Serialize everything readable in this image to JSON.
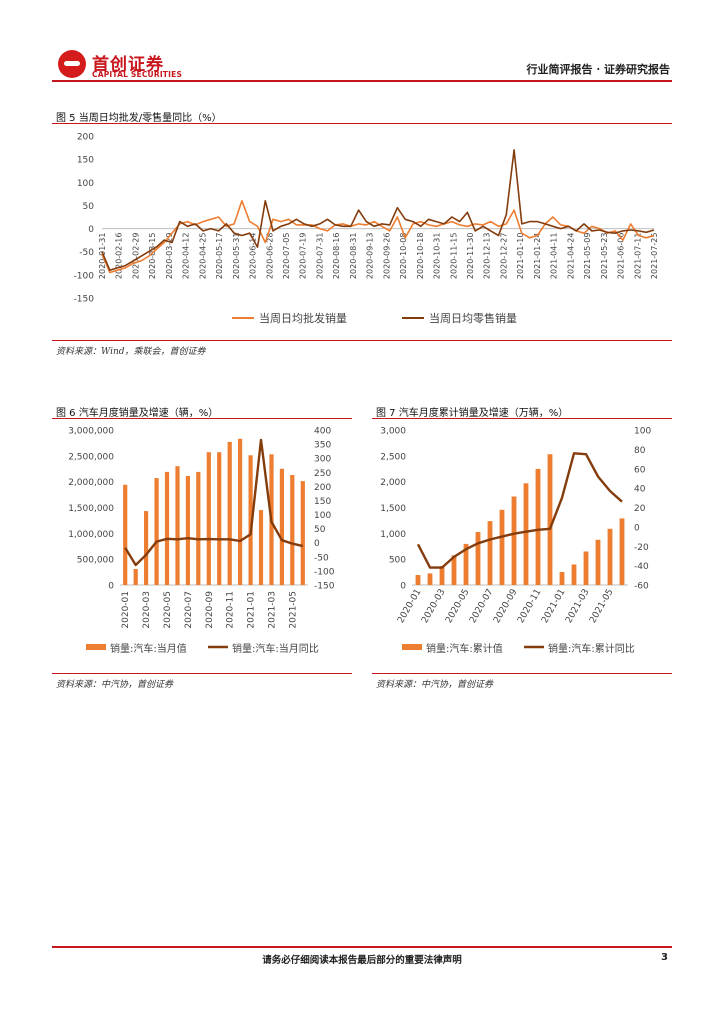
{
  "header": {
    "logo_cn": "首创证券",
    "logo_en": "CAPITAL SECURITIES",
    "report_type": "行业简评报告 · 证券研究报告"
  },
  "colors": {
    "brand_red": "#c8161d",
    "orange": "#ed7d31",
    "brown": "#843c0c"
  },
  "figures": {
    "fig5": {
      "title": "图 5  当周日均批发/零售量同比（%）",
      "source": "资料来源：Wind，乘联会，首创证券"
    },
    "fig6": {
      "title": "图 6  汽车月度销量及增速（辆，%）",
      "source": "资料来源：中汽协，首创证券"
    },
    "fig7": {
      "title": "图 7  汽车月度累计销量及增速（万辆，%）",
      "source": "资料来源：中汽协，首创证券"
    }
  },
  "chart_data": [
    {
      "id": "fig5",
      "type": "line",
      "y_ticks": [
        200,
        150,
        100,
        50,
        0,
        -50,
        -100,
        -150
      ],
      "ylim": [
        -150,
        200
      ],
      "x_tick_labels": [
        "2020-01-31",
        "2020-02-16",
        "2020-02-29",
        "2020-03-15",
        "2020-03-29",
        "2020-04-12",
        "2020-04-25",
        "2020-05-17",
        "2020-05-31",
        "2020-06-14",
        "2020-06-28",
        "2020-07-05",
        "2020-07-19",
        "2020-07-31",
        "2020-08-16",
        "2020-08-31",
        "2020-09-13",
        "2020-09-26",
        "2020-10-08",
        "2020-10-18",
        "2020-10-31",
        "2020-11-15",
        "2020-11-30",
        "2020-12-13",
        "2020-12-27",
        "2021-01-10",
        "2021-01-24",
        "2021-04-11",
        "2021-04-24",
        "2021-05-09",
        "2021-05-23",
        "2021-06-06",
        "2021-07-11",
        "2021-07-25"
      ],
      "legend_position": "bottom",
      "series": [
        {
          "name": "当周日均批发销量",
          "color": "#ed7d31",
          "values": [
            -55,
            -95,
            -90,
            -85,
            -75,
            -70,
            -60,
            -45,
            -30,
            -10,
            10,
            15,
            8,
            15,
            20,
            25,
            5,
            10,
            60,
            15,
            5,
            -30,
            20,
            15,
            20,
            8,
            8,
            8,
            0,
            -5,
            8,
            10,
            5,
            10,
            8,
            15,
            5,
            -5,
            25,
            -20,
            10,
            15,
            8,
            5,
            10,
            15,
            8,
            5,
            10,
            8,
            15,
            5,
            10,
            40,
            -10,
            -20,
            -15,
            10,
            25,
            8,
            5,
            -5,
            -10,
            5,
            0,
            -10,
            -5,
            -25,
            10,
            -15,
            -20,
            -15
          ]
        },
        {
          "name": "当周日均零售销量",
          "color": "#843c0c",
          "values": [
            -50,
            -90,
            -85,
            -80,
            -70,
            -60,
            -50,
            -40,
            -25,
            -30,
            15,
            5,
            10,
            -5,
            0,
            -5,
            10,
            -10,
            -15,
            -10,
            -40,
            60,
            -5,
            5,
            10,
            20,
            10,
            5,
            10,
            20,
            8,
            5,
            5,
            40,
            15,
            5,
            10,
            8,
            45,
            20,
            15,
            5,
            20,
            15,
            10,
            25,
            15,
            35,
            -5,
            5,
            -5,
            -15,
            30,
            170,
            10,
            15,
            15,
            10,
            5,
            0,
            5,
            -5,
            10,
            -5,
            -3,
            -8,
            -10,
            -5,
            -3,
            -5,
            -8,
            -3
          ]
        }
      ]
    },
    {
      "id": "fig6",
      "type": "bar",
      "categories": [
        "2020-01",
        "2020-02",
        "2020-03",
        "2020-04",
        "2020-05",
        "2020-06",
        "2020-07",
        "2020-08",
        "2020-09",
        "2020-10",
        "2020-11",
        "2020-12",
        "2021-01",
        "2021-02",
        "2021-03",
        "2021-04",
        "2021-05",
        "2021-06"
      ],
      "x_tick_labels": [
        "2020-01",
        "2020-03",
        "2020-05",
        "2020-07",
        "2020-09",
        "2020-11",
        "2021-01",
        "2021-03",
        "2021-05"
      ],
      "y_left_ticks": [
        "3,000,000",
        "2,500,000",
        "2,000,000",
        "1,500,000",
        "1,000,000",
        "500,000",
        "0"
      ],
      "y_right_ticks": [
        "400",
        "350",
        "300",
        "250",
        "200",
        "150",
        "100",
        "50",
        "0",
        "-50",
        "-100",
        "-150"
      ],
      "ylim_left": [
        0,
        3000000
      ],
      "ylim_right": [
        -150,
        400
      ],
      "legend_position": "bottom",
      "series": [
        {
          "name": "销量:汽车:当月值",
          "axis": "left",
          "color": "#ed7d31",
          "values": [
            1940000,
            310000,
            1430000,
            2070000,
            2190000,
            2300000,
            2110000,
            2190000,
            2570000,
            2570000,
            2770000,
            2830000,
            2510000,
            1450000,
            2530000,
            2250000,
            2130000,
            2010000
          ]
        },
        {
          "name": "销量:汽车:当月同比",
          "axis": "right",
          "color": "#843c0c",
          "values": [
            -18,
            -79,
            -43,
            4,
            14,
            12,
            16,
            12,
            13,
            12,
            12,
            6,
            30,
            365,
            75,
            9,
            -3,
            -12
          ]
        }
      ]
    },
    {
      "id": "fig7",
      "type": "bar",
      "categories": [
        "2020-01",
        "2020-02",
        "2020-03",
        "2020-04",
        "2020-05",
        "2020-06",
        "2020-07",
        "2020-08",
        "2020-09",
        "2020-10",
        "2020-11",
        "2020-12",
        "2021-01",
        "2021-02",
        "2021-03",
        "2021-04",
        "2021-05",
        "2021-06"
      ],
      "x_tick_labels": [
        "2020-01",
        "2020-03",
        "2020-05",
        "2020-07",
        "2020-09",
        "2020-11",
        "2021-01",
        "2021-03",
        "2021-05"
      ],
      "y_left_ticks": [
        "3,000",
        "2,500",
        "2,000",
        "1,500",
        "1,000",
        "500",
        "0"
      ],
      "y_right_ticks": [
        "100",
        "80",
        "60",
        "40",
        "20",
        "0",
        "-20",
        "-40",
        "-60"
      ],
      "ylim_left": [
        0,
        3000
      ],
      "ylim_right": [
        -60,
        100
      ],
      "legend_position": "bottom",
      "series": [
        {
          "name": "销量:汽车:累计值",
          "axis": "left",
          "color": "#ed7d31",
          "values": [
            194,
            225,
            368,
            575,
            795,
            1025,
            1236,
            1455,
            1712,
            1969,
            2247,
            2531,
            251,
            396,
            649,
            874,
            1087,
            1289
          ]
        },
        {
          "name": "销量:汽车:累计同比",
          "axis": "right",
          "color": "#843c0c",
          "values": [
            -18,
            -42,
            -42,
            -31,
            -23,
            -17,
            -13,
            -10,
            -7,
            -5,
            -3,
            -2,
            30,
            76,
            75,
            52,
            37,
            26
          ]
        }
      ]
    }
  ],
  "footer": {
    "note": "请务必仔细阅读本报告最后部分的重要法律声明",
    "page": "3"
  }
}
